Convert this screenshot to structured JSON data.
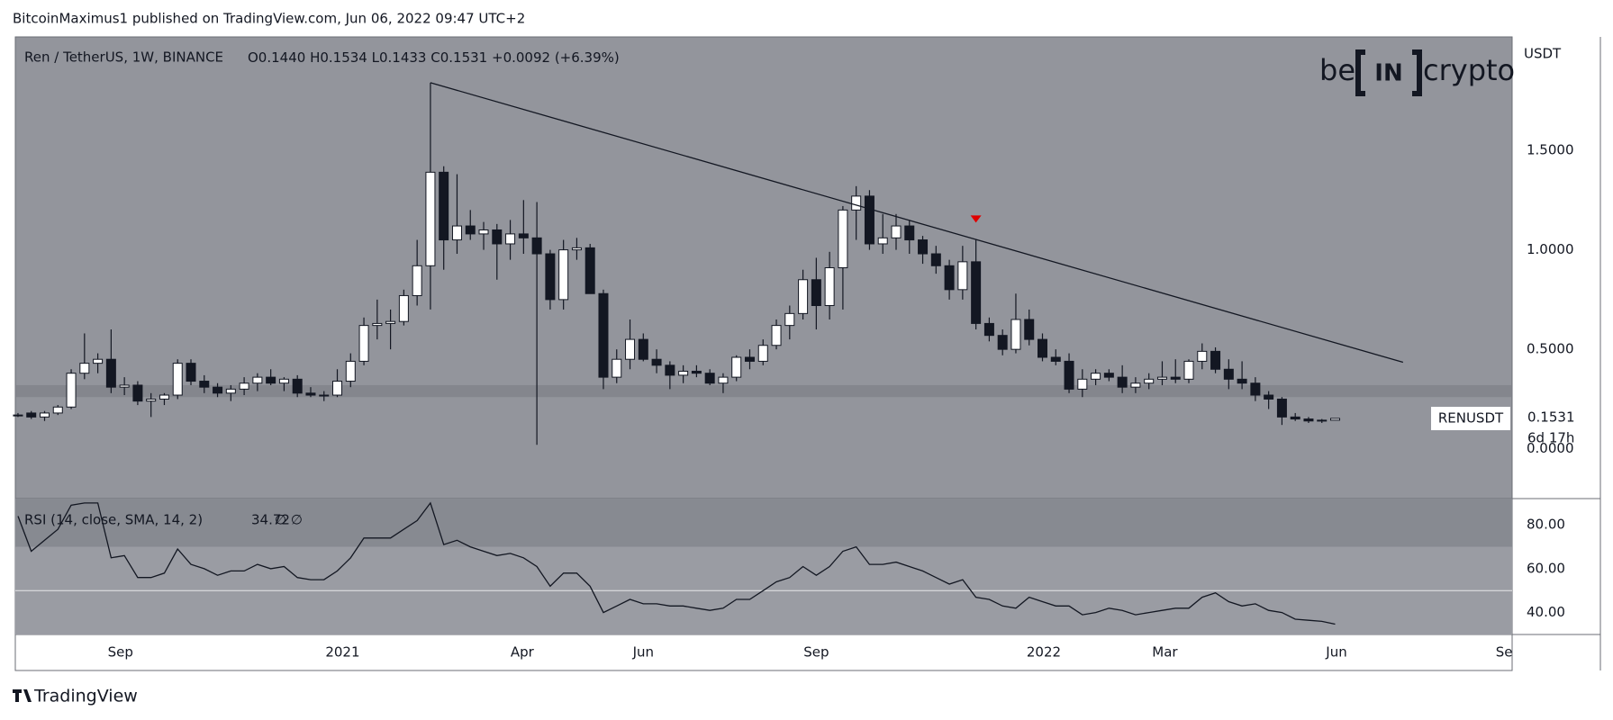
{
  "page": {
    "publisher": "BitcoinMaximus1 published on TradingView.com, Jun 06, 2022 09:47 UTC+2",
    "footer": "TradingView"
  },
  "chart_data": {
    "type": "candlestick",
    "symbol": "Ren / TetherUS, 1W, BINANCE",
    "ohlc_readout": [
      "O0.1440",
      "H0.1534",
      "L0.1433",
      "C0.1531"
    ],
    "change": "+0.0092 (+6.39%)",
    "logo": [
      "be",
      "IN",
      "crypto"
    ],
    "currency": "USDT",
    "price_label": {
      "symbol": "RENUSDT",
      "price": "0.1531",
      "countdown": "6d 17h"
    },
    "xlim": [
      -0.2,
      112.3
    ],
    "xticks": [
      {
        "value": 7.7,
        "label": "Sep"
      },
      {
        "value": 24.4,
        "label": "2021"
      },
      {
        "value": 37.9,
        "label": "Apr"
      },
      {
        "value": 47,
        "label": "Jun"
      },
      {
        "value": 60,
        "label": "Sep"
      },
      {
        "value": 77.1,
        "label": "2022"
      },
      {
        "value": 86.2,
        "label": "Mar"
      },
      {
        "value": 99.1,
        "label": "Jun"
      },
      {
        "value": 111.7,
        "label": "Se"
      }
    ],
    "ylim": [
      -0.25,
      2.07
    ],
    "yticks": [
      {
        "value": 0,
        "label": "0.0000"
      },
      {
        "value": 0.5,
        "label": "0.5000"
      },
      {
        "value": 1,
        "label": "1.0000"
      },
      {
        "value": 1.5,
        "label": "1.5000"
      }
    ],
    "open": [
      0.17,
      0.18,
      0.16,
      0.18,
      0.21,
      0.38,
      0.43,
      0.45,
      0.31,
      0.32,
      0.24,
      0.25,
      0.27,
      0.43,
      0.34,
      0.31,
      0.28,
      0.3,
      0.33,
      0.36,
      0.33,
      0.35,
      0.28,
      0.27,
      0.27,
      0.34,
      0.44,
      0.62,
      0.63,
      0.64,
      0.77,
      0.92,
      1.39,
      1.05,
      1.12,
      1.08,
      1.1,
      1.03,
      1.08,
      1.06,
      0.98,
      0.75,
      1.0,
      1.01,
      0.78,
      0.36,
      0.45,
      0.55,
      0.45,
      0.42,
      0.37,
      0.39,
      0.38,
      0.33,
      0.36,
      0.46,
      0.44,
      0.52,
      0.62,
      0.68,
      0.85,
      0.72,
      0.91,
      1.2,
      1.27,
      1.03,
      1.06,
      1.12,
      1.05,
      0.98,
      0.92,
      0.8,
      0.94,
      0.63,
      0.57,
      0.5,
      0.65,
      0.55,
      0.46,
      0.44,
      0.3,
      0.35,
      0.38,
      0.36,
      0.31,
      0.33,
      0.35,
      0.36,
      0.35,
      0.44,
      0.49,
      0.4,
      0.35,
      0.33,
      0.27,
      0.25,
      0.16,
      0.15,
      0.14,
      0.144
    ],
    "high": [
      0.18,
      0.19,
      0.19,
      0.22,
      0.4,
      0.58,
      0.48,
      0.6,
      0.36,
      0.34,
      0.28,
      0.28,
      0.45,
      0.45,
      0.37,
      0.33,
      0.32,
      0.36,
      0.38,
      0.4,
      0.36,
      0.37,
      0.31,
      0.29,
      0.4,
      0.48,
      0.66,
      0.75,
      0.7,
      0.8,
      1.05,
      1.84,
      1.42,
      1.38,
      1.2,
      1.14,
      1.13,
      1.15,
      1.25,
      1.24,
      1.0,
      1.05,
      1.06,
      1.03,
      0.8,
      0.5,
      0.65,
      0.58,
      0.5,
      0.44,
      0.42,
      0.42,
      0.4,
      0.38,
      0.47,
      0.5,
      0.55,
      0.65,
      0.72,
      0.9,
      0.96,
      0.99,
      1.22,
      1.32,
      1.3,
      1.18,
      1.18,
      1.15,
      1.07,
      1.02,
      0.95,
      1.02,
      1.05,
      0.66,
      0.6,
      0.78,
      0.7,
      0.58,
      0.5,
      0.48,
      0.4,
      0.4,
      0.4,
      0.42,
      0.36,
      0.38,
      0.44,
      0.45,
      0.45,
      0.53,
      0.51,
      0.45,
      0.44,
      0.36,
      0.29,
      0.26,
      0.18,
      0.16,
      0.15,
      0.1534
    ],
    "low": [
      0.16,
      0.15,
      0.14,
      0.17,
      0.2,
      0.35,
      0.38,
      0.28,
      0.27,
      0.22,
      0.16,
      0.22,
      0.25,
      0.32,
      0.28,
      0.26,
      0.24,
      0.27,
      0.29,
      0.32,
      0.29,
      0.26,
      0.26,
      0.24,
      0.26,
      0.31,
      0.42,
      0.55,
      0.5,
      0.62,
      0.72,
      0.7,
      0.9,
      0.98,
      1.05,
      1.0,
      0.85,
      0.95,
      0.98,
      0.02,
      0.7,
      0.7,
      0.95,
      0.8,
      0.3,
      0.33,
      0.4,
      0.44,
      0.38,
      0.3,
      0.33,
      0.36,
      0.32,
      0.28,
      0.34,
      0.4,
      0.42,
      0.5,
      0.55,
      0.65,
      0.6,
      0.65,
      0.7,
      1.05,
      1.0,
      0.98,
      1.0,
      0.98,
      0.93,
      0.88,
      0.75,
      0.75,
      0.6,
      0.54,
      0.47,
      0.48,
      0.52,
      0.44,
      0.42,
      0.28,
      0.26,
      0.32,
      0.34,
      0.28,
      0.28,
      0.3,
      0.32,
      0.33,
      0.33,
      0.4,
      0.38,
      0.3,
      0.3,
      0.24,
      0.2,
      0.12,
      0.14,
      0.13,
      0.13,
      0.1433
    ],
    "close": [
      0.17,
      0.16,
      0.18,
      0.21,
      0.38,
      0.43,
      0.45,
      0.31,
      0.32,
      0.24,
      0.25,
      0.27,
      0.43,
      0.34,
      0.31,
      0.28,
      0.3,
      0.33,
      0.36,
      0.33,
      0.35,
      0.28,
      0.27,
      0.27,
      0.34,
      0.44,
      0.62,
      0.63,
      0.64,
      0.77,
      0.92,
      1.39,
      1.05,
      1.12,
      1.08,
      1.1,
      1.03,
      1.08,
      1.06,
      0.98,
      0.75,
      1.0,
      1.01,
      0.78,
      0.36,
      0.45,
      0.55,
      0.45,
      0.42,
      0.37,
      0.39,
      0.38,
      0.33,
      0.36,
      0.46,
      0.44,
      0.52,
      0.62,
      0.68,
      0.85,
      0.72,
      0.91,
      1.2,
      1.27,
      1.03,
      1.06,
      1.12,
      1.05,
      0.98,
      0.92,
      0.8,
      0.94,
      0.63,
      0.57,
      0.5,
      0.65,
      0.55,
      0.46,
      0.44,
      0.3,
      0.35,
      0.38,
      0.36,
      0.31,
      0.33,
      0.35,
      0.36,
      0.35,
      0.44,
      0.49,
      0.4,
      0.35,
      0.33,
      0.27,
      0.25,
      0.16,
      0.15,
      0.14,
      0.144,
      0.1531
    ],
    "support_zone": [
      0.26,
      0.32
    ],
    "trendline": {
      "x": [
        31,
        104.1
      ],
      "y": [
        1.84,
        0.435
      ]
    },
    "marker": {
      "x": 72,
      "y": 1.15
    },
    "rsi": {
      "title": "RSI (14, close, SMA, 14, 2)",
      "value": "34.72",
      "extra": "∅ ∅",
      "ylim": [
        30,
        92
      ],
      "yticks": [
        {
          "value": 80,
          "label": "80.00"
        },
        {
          "value": 60,
          "label": "60.00"
        },
        {
          "value": 40,
          "label": "40.00"
        }
      ],
      "band": [
        30,
        70
      ],
      "midline": 50,
      "values": [
        84,
        68,
        73,
        78,
        89,
        90,
        90,
        65,
        66,
        56,
        56,
        58,
        69,
        62,
        60,
        57,
        59,
        59,
        62,
        60,
        61,
        56,
        55,
        55,
        59,
        65,
        74,
        74,
        74,
        78,
        82,
        90,
        71,
        73,
        70,
        68,
        66,
        67,
        65,
        61,
        52,
        58,
        58,
        52,
        40,
        43,
        46,
        44,
        44,
        43,
        43,
        42,
        41,
        42,
        46,
        46,
        50,
        54,
        56,
        61,
        57,
        61,
        68,
        70,
        62,
        62,
        63,
        61,
        59,
        56,
        53,
        55,
        47,
        46,
        43,
        42,
        47,
        45,
        43,
        43,
        39,
        40,
        42,
        41,
        39,
        40,
        41,
        42,
        42,
        47,
        49,
        45,
        43,
        44,
        41,
        40,
        37,
        36.5,
        36,
        34.72
      ]
    }
  }
}
